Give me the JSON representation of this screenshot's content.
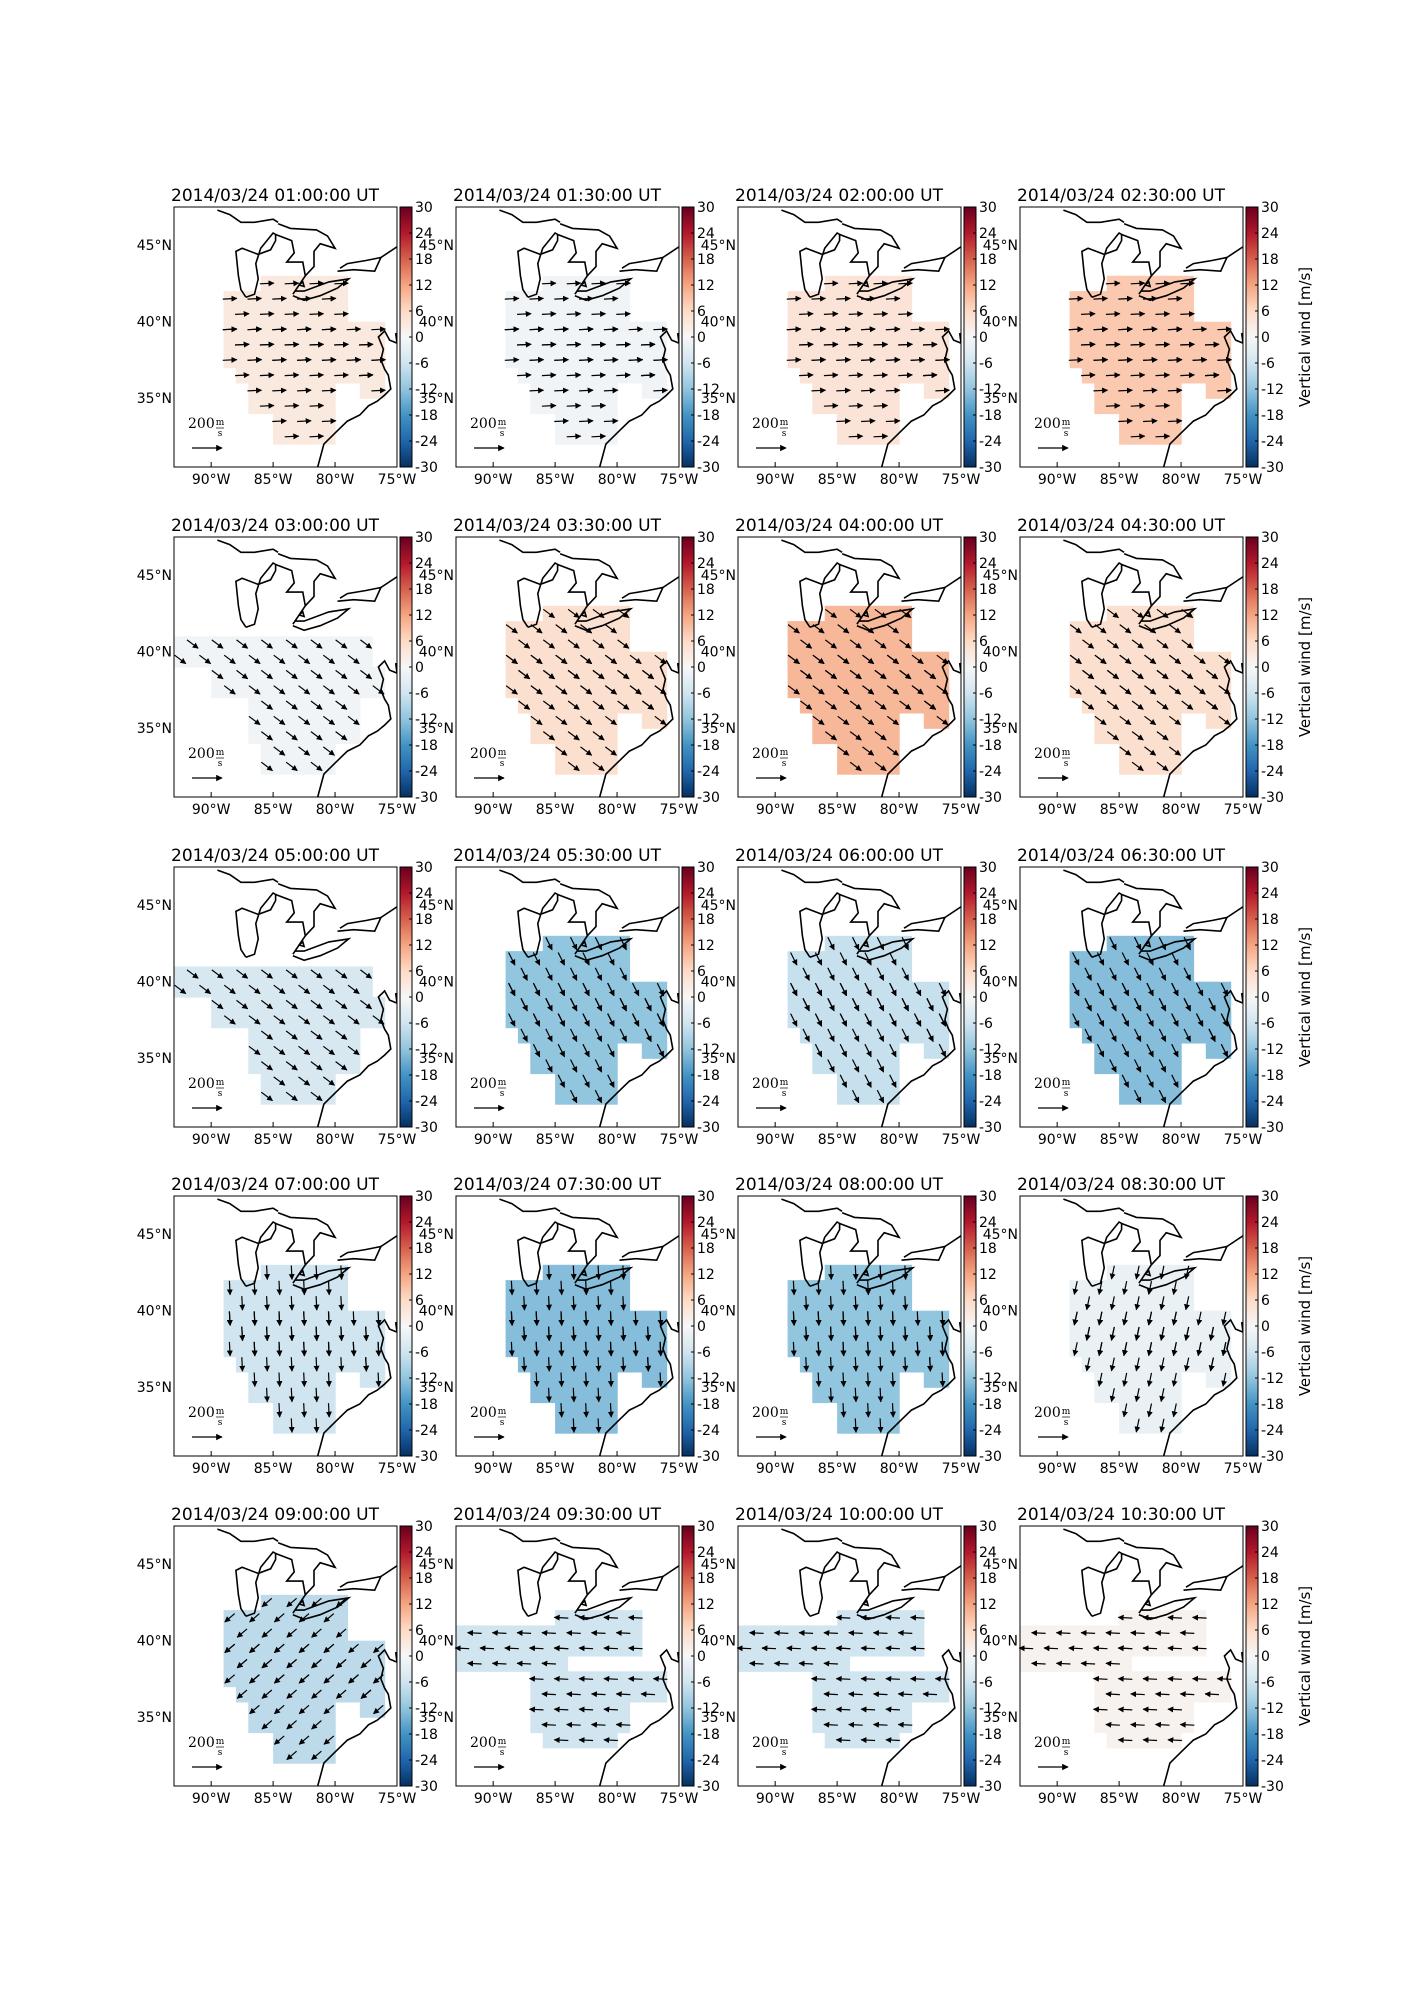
{
  "figure": {
    "colorbar": {
      "label": "Vertical wind [m/s]",
      "ticks": [
        "30",
        "24",
        "18",
        "12",
        "6",
        "0",
        "-6",
        "-12",
        "-18",
        "-24",
        "-30"
      ],
      "range": [
        -30,
        30
      ],
      "colormap": "RdBu_r"
    },
    "axes": {
      "lon_ticks": [
        "90°W",
        "85°W",
        "80°W",
        "75°W"
      ],
      "lat_ticks": [
        "45°N",
        "40°N",
        "35°N"
      ],
      "lon_range": [
        -93,
        -75
      ],
      "lat_range": [
        30.5,
        47.5
      ]
    },
    "reference_arrow": {
      "label": "200",
      "unit_num": "m",
      "unit_den": "s"
    }
  },
  "panels": [
    {
      "title": "2014/03/24 01:00:00 UT",
      "mean_w": 3,
      "region": "A",
      "wind_dir": "E"
    },
    {
      "title": "2014/03/24 01:30:00 UT",
      "mean_w": -1,
      "region": "A",
      "wind_dir": "E"
    },
    {
      "title": "2014/03/24 02:00:00 UT",
      "mean_w": 4,
      "region": "A",
      "wind_dir": "E"
    },
    {
      "title": "2014/03/24 02:30:00 UT",
      "mean_w": 8,
      "region": "A",
      "wind_dir": "E"
    },
    {
      "title": "2014/03/24 03:00:00 UT",
      "mean_w": -1,
      "region": "B",
      "wind_dir": "SE"
    },
    {
      "title": "2014/03/24 03:30:00 UT",
      "mean_w": 5,
      "region": "A",
      "wind_dir": "SE"
    },
    {
      "title": "2014/03/24 04:00:00 UT",
      "mean_w": 10,
      "region": "A",
      "wind_dir": "SE"
    },
    {
      "title": "2014/03/24 04:30:00 UT",
      "mean_w": 5,
      "region": "A",
      "wind_dir": "SE"
    },
    {
      "title": "2014/03/24 05:00:00 UT",
      "mean_w": -5,
      "region": "B",
      "wind_dir": "SE"
    },
    {
      "title": "2014/03/24 05:30:00 UT",
      "mean_w": -12,
      "region": "A",
      "wind_dir": "SSE"
    },
    {
      "title": "2014/03/24 06:00:00 UT",
      "mean_w": -7,
      "region": "A",
      "wind_dir": "SSE"
    },
    {
      "title": "2014/03/24 06:30:00 UT",
      "mean_w": -13,
      "region": "A",
      "wind_dir": "SSE"
    },
    {
      "title": "2014/03/24 07:00:00 UT",
      "mean_w": -6,
      "region": "A",
      "wind_dir": "S"
    },
    {
      "title": "2014/03/24 07:30:00 UT",
      "mean_w": -13,
      "region": "A",
      "wind_dir": "S"
    },
    {
      "title": "2014/03/24 08:00:00 UT",
      "mean_w": -12,
      "region": "A",
      "wind_dir": "S"
    },
    {
      "title": "2014/03/24 08:30:00 UT",
      "mean_w": -2,
      "region": "A",
      "wind_dir": "SSW"
    },
    {
      "title": "2014/03/24 09:00:00 UT",
      "mean_w": -8,
      "region": "A",
      "wind_dir": "SW"
    },
    {
      "title": "2014/03/24 09:30:00 UT",
      "mean_w": -6,
      "region": "C",
      "wind_dir": "W"
    },
    {
      "title": "2014/03/24 10:00:00 UT",
      "mean_w": -6,
      "region": "C",
      "wind_dir": "W"
    },
    {
      "title": "2014/03/24 10:30:00 UT",
      "mean_w": 1,
      "region": "C",
      "wind_dir": "W"
    }
  ]
}
